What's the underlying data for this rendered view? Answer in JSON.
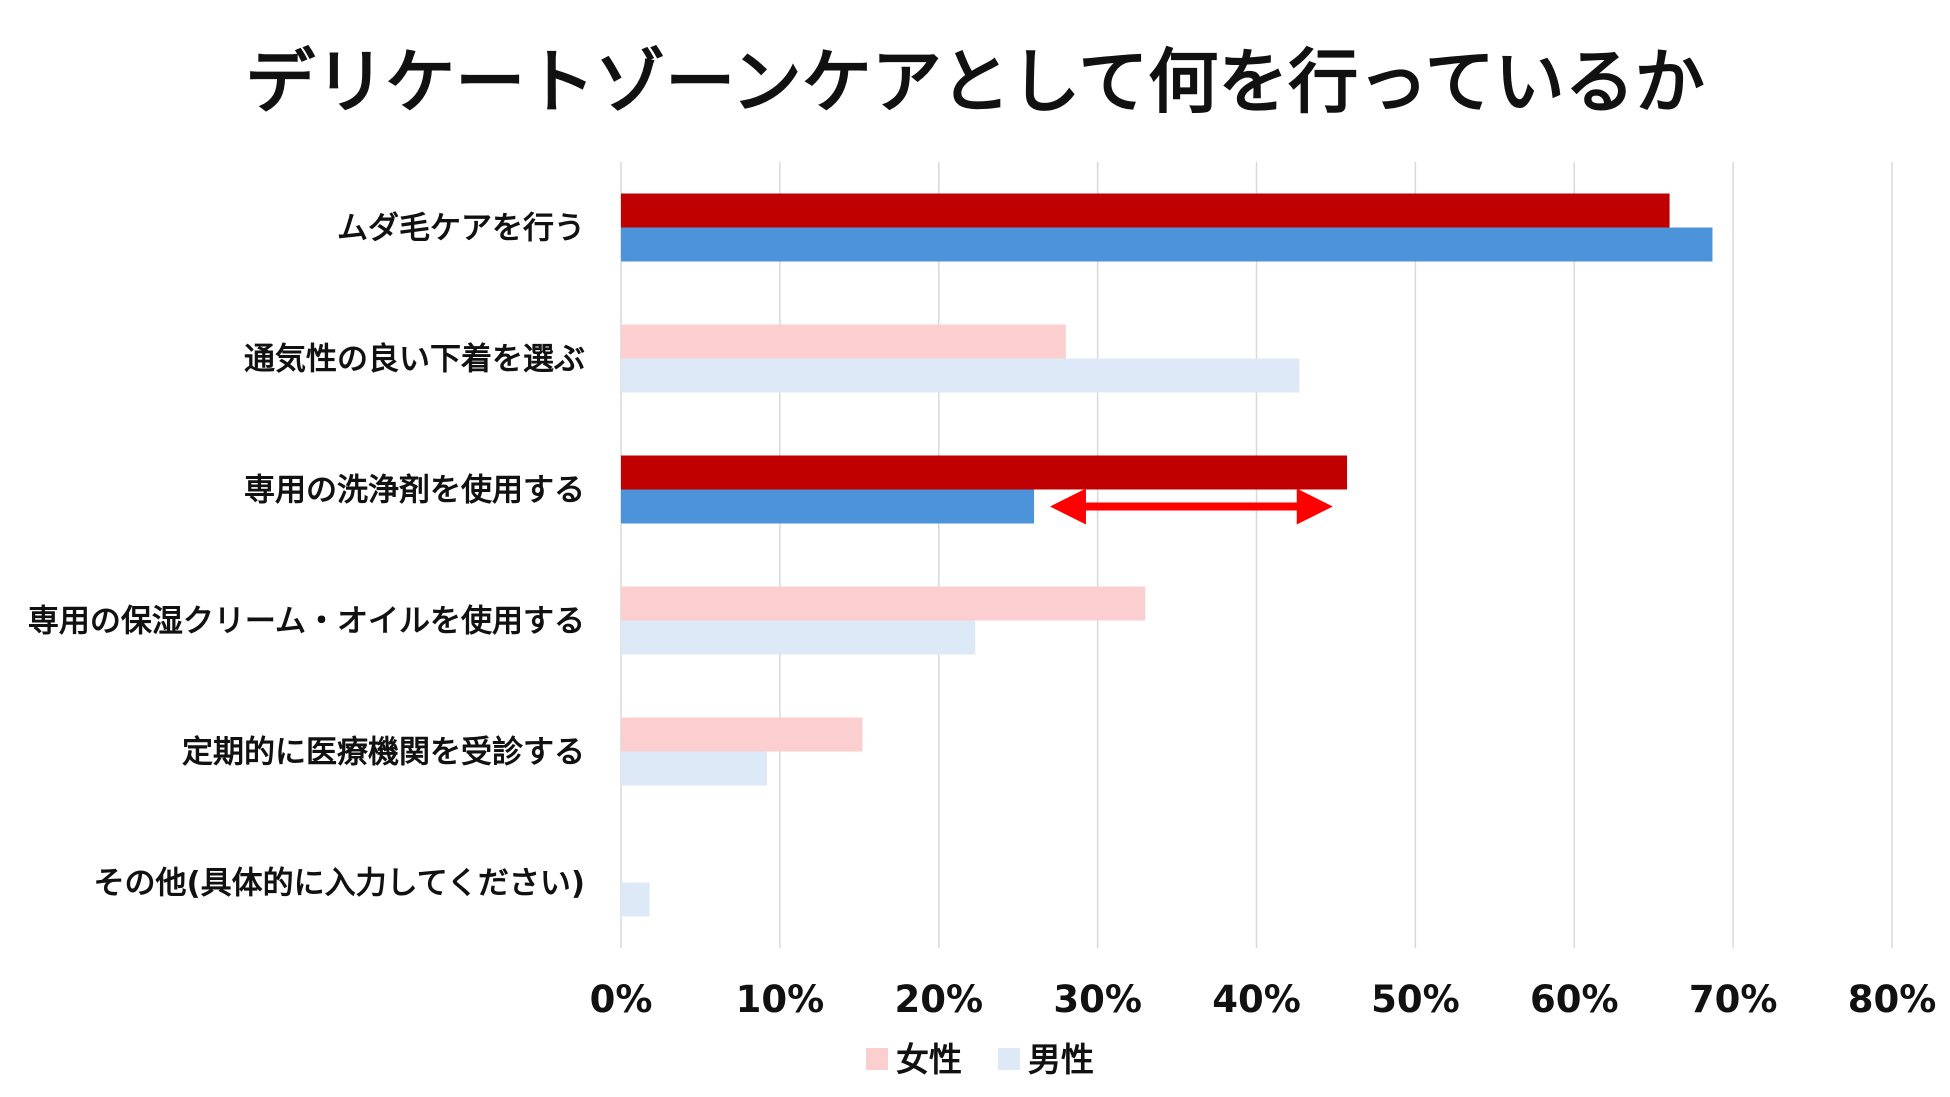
{
  "chart_data": {
    "type": "bar",
    "orientation": "horizontal",
    "title": "デリケートゾーンケアとして何を行っているか",
    "categories": [
      "ムダ毛ケアを行う",
      "通気性の良い下着を選ぶ",
      "専用の洗浄剤を使用する",
      "専用の保湿クリーム・オイルを使用する",
      "定期的に医療機関を受診する",
      "その他(具体的に入力してください)"
    ],
    "series": [
      {
        "name": "女性",
        "values": [
          66,
          28,
          45.7,
          33,
          15.2,
          0
        ],
        "color": "#fbcfcf"
      },
      {
        "name": "男性",
        "values": [
          68.7,
          42.7,
          26,
          22.3,
          9.2,
          1.8
        ],
        "color": "#dde9f7"
      }
    ],
    "highlight_categories": [
      0,
      2
    ],
    "highlight_colors": {
      "女性": "#c00000",
      "男性": "#4d93d9"
    },
    "xlim": [
      0,
      80
    ],
    "xticks": [
      "0%",
      "10%",
      "20%",
      "30%",
      "40%",
      "50%",
      "60%",
      "70%",
      "80%"
    ],
    "legend": "bottom",
    "grid": true,
    "annotation": {
      "type": "double-arrow",
      "category": 2,
      "from": 27,
      "to": 44.8,
      "color": "#ff0000"
    }
  }
}
